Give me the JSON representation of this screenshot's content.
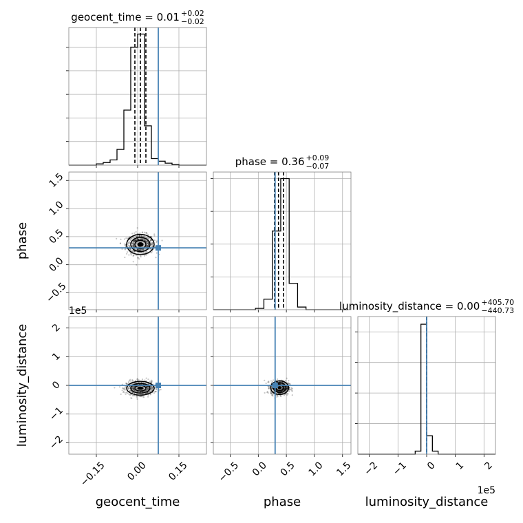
{
  "chart_data": {
    "type": "corner",
    "parameters": [
      "geocent_time",
      "phase",
      "luminosity_distance"
    ],
    "truth": {
      "geocent_time": 0.075,
      "phase": 0.3,
      "luminosity_distance": 0.0
    },
    "colors": {
      "truth": "#4682b4",
      "hist": "#000000",
      "grid": "#b0b0b0"
    },
    "offset_label": "1e5",
    "titles": [
      {
        "param": "geocent_time",
        "base": "geocent_time = 0.01",
        "sup": "+0.02",
        "sub": "−0.02"
      },
      {
        "param": "phase",
        "base": "phase = 0.36",
        "sup": "+0.09",
        "sub": "−0.07"
      },
      {
        "param": "luminosity_distance",
        "base": "luminosity_distance = 0.00",
        "sup": "+405.70",
        "sub": "−440.73"
      }
    ],
    "axis_labels": {
      "x": [
        "geocent_time",
        "phase",
        "luminosity_distance"
      ],
      "y": [
        "phase",
        "luminosity_distance"
      ]
    },
    "axes": {
      "geocent_time": {
        "range": [
          -0.25,
          0.25
        ],
        "ticks": [
          -0.15,
          0.0,
          0.15
        ],
        "tick_labels": [
          "−0.15",
          "0.00",
          "0.15"
        ]
      },
      "phase": {
        "range": [
          -0.8,
          1.65
        ],
        "ticks": [
          -0.5,
          0.0,
          0.5,
          1.0,
          1.5
        ],
        "tick_labels": [
          "−0.5",
          "0.0",
          "0.5",
          "1.0",
          "1.5"
        ]
      },
      "luminosity_distance": {
        "range": [
          -2.4,
          2.4
        ],
        "ticks": [
          -2,
          -1,
          0,
          1,
          2
        ],
        "tick_labels": [
          "−2",
          "−1",
          "0",
          "1",
          "2"
        ]
      }
    },
    "histograms": {
      "geocent_time": {
        "quantiles": [
          -0.01,
          0.01,
          0.03
        ],
        "edges": [
          -0.25,
          -0.225,
          -0.2,
          -0.175,
          -0.15,
          -0.125,
          -0.1,
          -0.075,
          -0.05,
          -0.025,
          0.0,
          0.025,
          0.05,
          0.075,
          0.1,
          0.125,
          0.15,
          0.175,
          0.2,
          0.225,
          0.25
        ],
        "counts": [
          0,
          0,
          0,
          0,
          0.01,
          0.02,
          0.04,
          0.12,
          0.42,
          0.9,
          1.0,
          0.3,
          0.05,
          0.03,
          0.015,
          0.005,
          0,
          0,
          0,
          0
        ],
        "ylim": [
          0,
          1.05
        ],
        "yticks": [
          0.18,
          0.36,
          0.54,
          0.72,
          0.9
        ]
      },
      "phase": {
        "quantiles": [
          0.29,
          0.36,
          0.45
        ],
        "edges": [
          -0.8,
          -0.65,
          -0.5,
          -0.35,
          -0.2,
          -0.05,
          0.1,
          0.25,
          0.4,
          0.55,
          0.7,
          0.85,
          1.0,
          1.15,
          1.3,
          1.45,
          1.6
        ],
        "counts": [
          0,
          0,
          0,
          0,
          0,
          0.01,
          0.08,
          0.6,
          1.0,
          0.2,
          0.02,
          0,
          0,
          0,
          0,
          0
        ],
        "ylim": [
          0,
          1.05
        ],
        "yticks": [
          0.25,
          0.5,
          0.75,
          1.0
        ]
      },
      "luminosity_distance": {
        "quantiles": [
          -0.0044,
          0.0,
          0.0041
        ],
        "edges": [
          -2.4,
          -2.2,
          -2.0,
          -1.8,
          -1.6,
          -1.4,
          -1.2,
          -1.0,
          -0.8,
          -0.6,
          -0.4,
          -0.2,
          0.0,
          0.2,
          0.4,
          0.6,
          0.8,
          1.0,
          1.2,
          1.4,
          1.6,
          1.8,
          2.0,
          2.2,
          2.4
        ],
        "counts": [
          0,
          0,
          0,
          0,
          0,
          0,
          0,
          0,
          0,
          0,
          0.02,
          0.85,
          0.12,
          0.02,
          0,
          0,
          0,
          0,
          0,
          0,
          0,
          0,
          0,
          0
        ],
        "ylim": [
          0,
          0.9
        ],
        "yticks": [
          0.2,
          0.4,
          0.6,
          0.8
        ]
      }
    },
    "pairs": [
      {
        "x": "geocent_time",
        "y": "phase",
        "center": [
          0.01,
          0.36
        ],
        "spread": [
          0.025,
          0.09
        ]
      },
      {
        "x": "geocent_time",
        "y": "luminosity_distance",
        "center": [
          0.01,
          -0.1
        ],
        "spread": [
          0.025,
          0.12
        ]
      },
      {
        "x": "phase",
        "y": "luminosity_distance",
        "center": [
          0.38,
          -0.08
        ],
        "spread": [
          0.08,
          0.12
        ]
      }
    ]
  }
}
